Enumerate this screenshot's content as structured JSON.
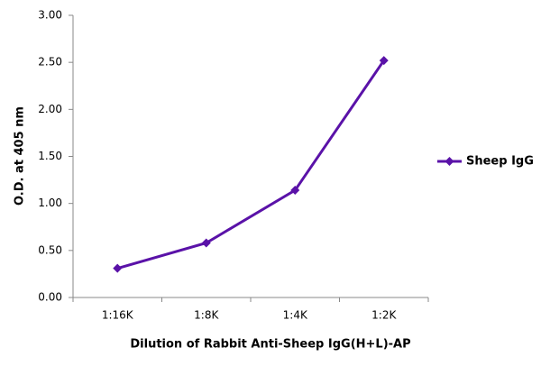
{
  "chart_data": {
    "type": "line",
    "x_label": "Dilution of Rabbit Anti-Sheep IgG(H+L)-AP",
    "y_label": "O.D. at 405 nm",
    "categories": [
      "1:16K",
      "1:8K",
      "1:4K",
      "1:2K"
    ],
    "series": [
      {
        "name": "Sheep IgG",
        "color": "#5a12a8",
        "values": [
          0.31,
          0.58,
          1.14,
          2.52
        ]
      }
    ],
    "ylim": [
      0,
      3
    ],
    "yticks": [
      {
        "value": 0,
        "label": "0.00"
      },
      {
        "value": 0.5,
        "label": "0.50"
      },
      {
        "value": 1,
        "label": "1.00"
      },
      {
        "value": 1.5,
        "label": "1.50"
      },
      {
        "value": 2,
        "label": "2.00"
      },
      {
        "value": 2.5,
        "label": "2.50"
      },
      {
        "value": 3,
        "label": "3.00"
      }
    ],
    "grid": false,
    "legend": "right"
  }
}
